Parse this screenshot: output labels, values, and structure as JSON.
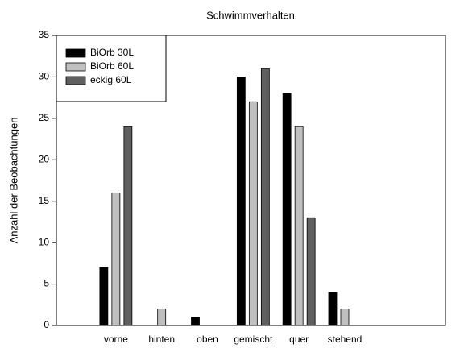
{
  "chart_data": {
    "type": "bar",
    "title": "Schwimmverhalten",
    "y_label": "Anzahl der Beobachtungen",
    "categories": [
      "vorne",
      "hinten",
      "oben",
      "gemischt",
      "quer",
      "stehend"
    ],
    "series": [
      {
        "name": "BiOrb 30L",
        "color": "#000000",
        "values": [
          7,
          0,
          1,
          30,
          28,
          4
        ]
      },
      {
        "name": "BiOrb 60L",
        "color": "#c0c0c0",
        "values": [
          16,
          2,
          0,
          27,
          24,
          2
        ]
      },
      {
        "name": "eckig 60L",
        "color": "#606060",
        "values": [
          24,
          0,
          0,
          31,
          13,
          0
        ]
      }
    ],
    "ylim": [
      0,
      35
    ],
    "yticks": [
      0,
      5,
      10,
      15,
      20,
      25,
      30,
      35
    ],
    "grid": false,
    "legend": "top-left"
  }
}
